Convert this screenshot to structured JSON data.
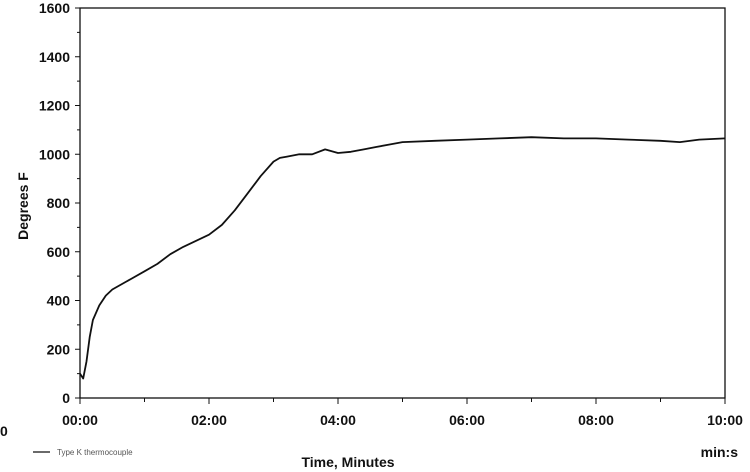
{
  "chart_data": {
    "type": "line",
    "title": "",
    "xlabel": "Time, Minutes",
    "ylabel": "Degrees F",
    "x_unit_label": "min:s",
    "xlim": [
      0,
      10
    ],
    "ylim": [
      0,
      1600
    ],
    "x_ticks": [
      {
        "value": 0,
        "label": "00:00"
      },
      {
        "value": 2,
        "label": "02:00"
      },
      {
        "value": 4,
        "label": "04:00"
      },
      {
        "value": 6,
        "label": "06:00"
      },
      {
        "value": 8,
        "label": "08:00"
      },
      {
        "value": 10,
        "label": "10:00"
      }
    ],
    "y_ticks": [
      {
        "value": 0,
        "label": "0"
      },
      {
        "value": 200,
        "label": "200"
      },
      {
        "value": 400,
        "label": "400"
      },
      {
        "value": 600,
        "label": "600"
      },
      {
        "value": 800,
        "label": "800"
      },
      {
        "value": 1000,
        "label": "1000"
      },
      {
        "value": 1200,
        "label": "1200"
      },
      {
        "value": 1400,
        "label": "1400"
      },
      {
        "value": 1600,
        "label": "1600"
      }
    ],
    "grid": false,
    "legend_position": "bottom-left",
    "series": [
      {
        "color": "#111111",
        "x": [
          0,
          0.05,
          0.1,
          0.15,
          0.2,
          0.3,
          0.4,
          0.5,
          0.6,
          0.8,
          1.0,
          1.2,
          1.4,
          1.6,
          1.8,
          2.0,
          2.2,
          2.4,
          2.6,
          2.8,
          3.0,
          3.1,
          3.2,
          3.4,
          3.6,
          3.8,
          4.0,
          4.2,
          4.4,
          4.6,
          4.8,
          5.0,
          5.5,
          6.0,
          6.5,
          7.0,
          7.5,
          8.0,
          8.5,
          9.0,
          9.3,
          9.6,
          10.0
        ],
        "y": [
          100,
          80,
          150,
          250,
          320,
          380,
          420,
          445,
          460,
          490,
          520,
          550,
          590,
          620,
          645,
          670,
          710,
          770,
          840,
          910,
          970,
          985,
          990,
          1000,
          1000,
          1020,
          1005,
          1010,
          1020,
          1030,
          1040,
          1050,
          1055,
          1060,
          1065,
          1070,
          1065,
          1065,
          1060,
          1055,
          1050,
          1060,
          1065
        ]
      }
    ]
  },
  "legend": {
    "label": "Type K thermocouple"
  },
  "stray_label": "0"
}
